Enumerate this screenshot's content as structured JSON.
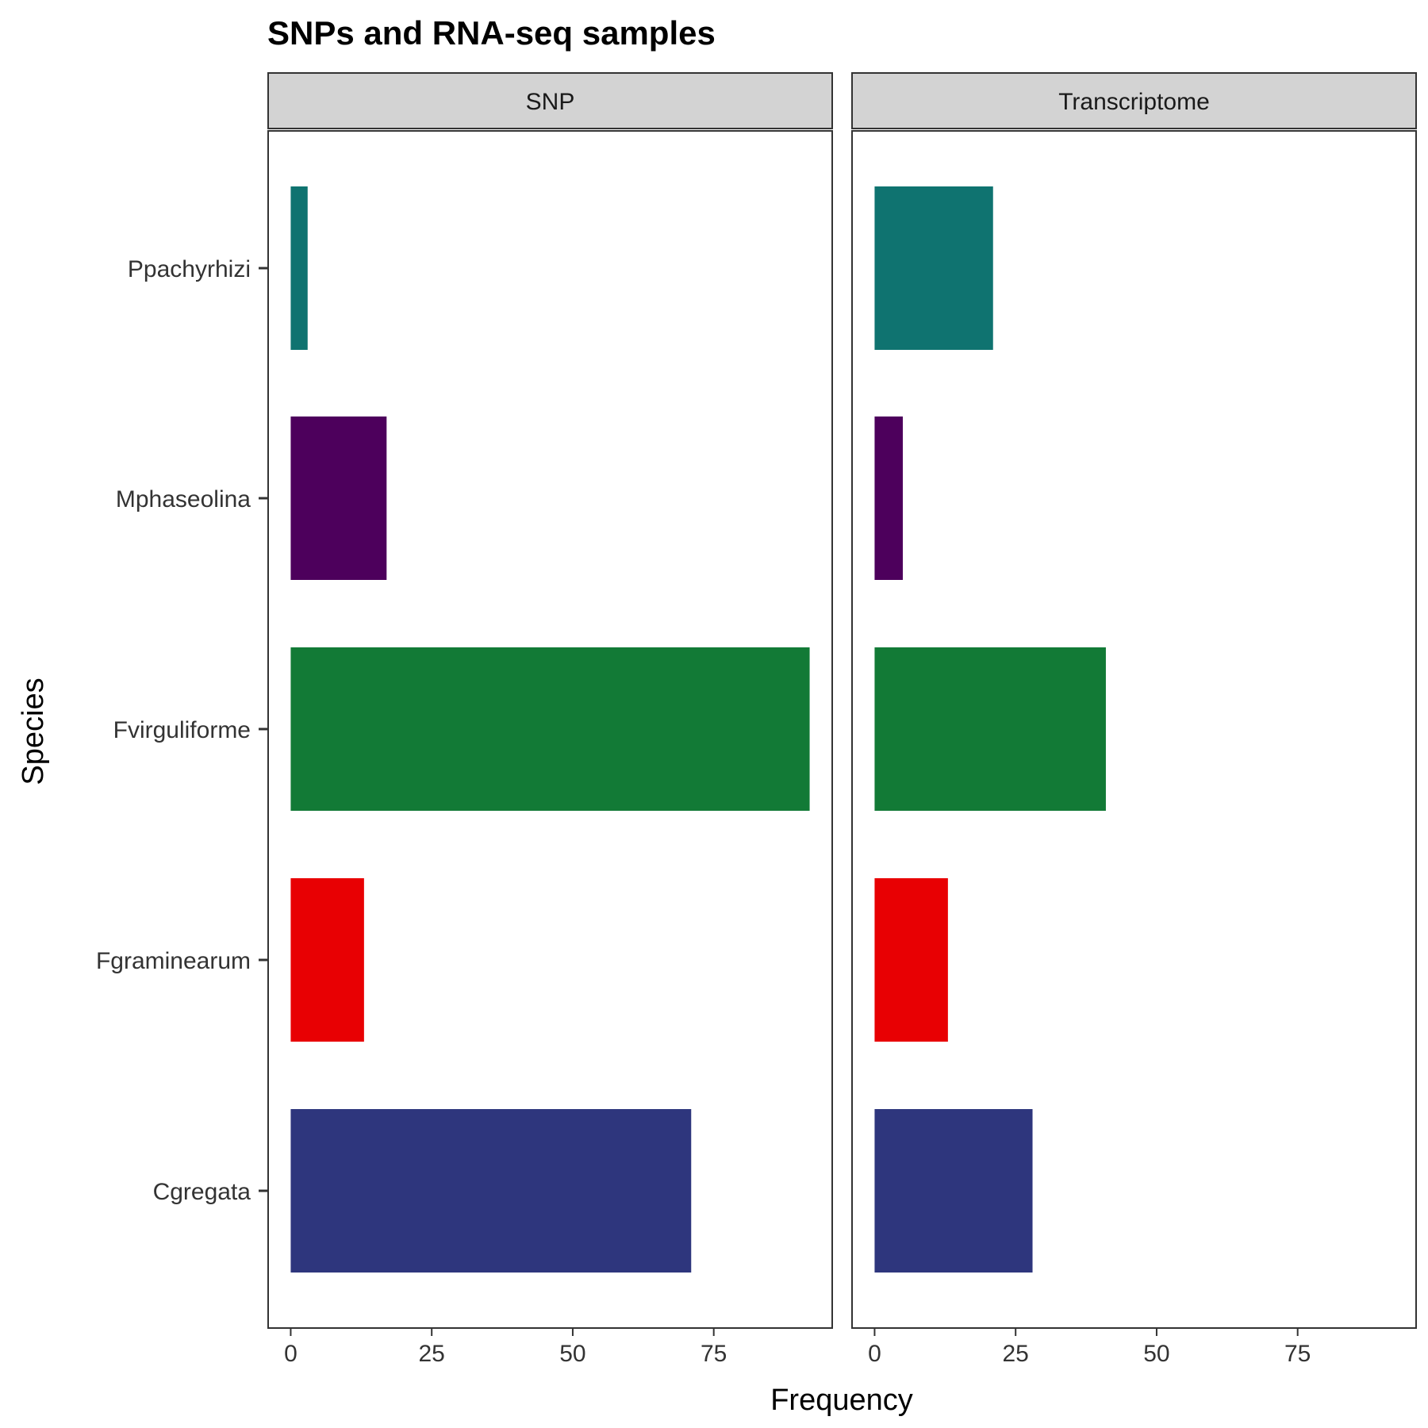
{
  "chart_data": {
    "type": "bar",
    "orientation": "horizontal",
    "title": "SNPs and RNA-seq samples",
    "xlabel": "Frequency",
    "ylabel": "Species",
    "xlim": [
      -4,
      96
    ],
    "x_ticks": [
      0,
      25,
      50,
      75
    ],
    "categories": [
      "Ppachyrhizi",
      "Mphaseolina",
      "Fvirguliforme",
      "Fgraminearum",
      "Cgregata"
    ],
    "colors": {
      "Ppachyrhizi": "#0f7370",
      "Mphaseolina": "#4d005c",
      "Fvirguliforme": "#127a36",
      "Fgraminearum": "#e80003",
      "Cgregata": "#2e367d"
    },
    "panels": [
      {
        "name": "SNP",
        "values": [
          3,
          17,
          92,
          13,
          71
        ]
      },
      {
        "name": "Transcriptome",
        "values": [
          21,
          5,
          41,
          13,
          28
        ]
      }
    ],
    "grid": false,
    "legend": "none"
  }
}
